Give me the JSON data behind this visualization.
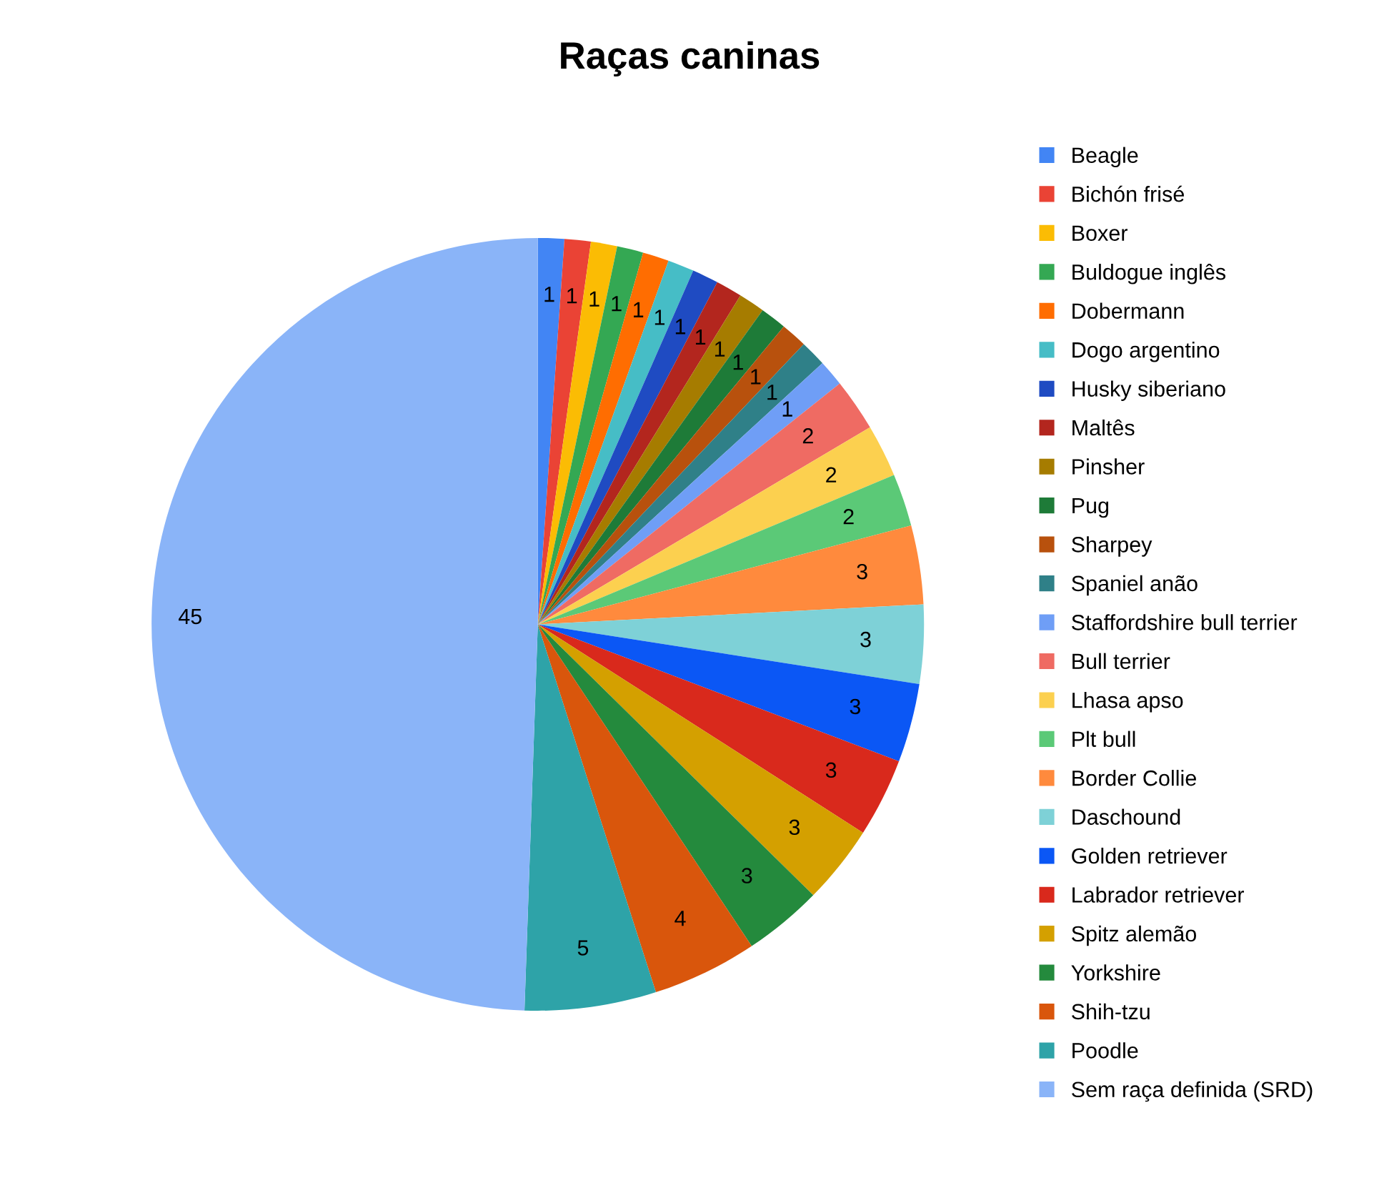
{
  "chart_data": {
    "type": "pie",
    "title": "Raças caninas",
    "categories": [
      "Beagle",
      "Bichón frisé",
      "Boxer",
      "Buldogue inglês",
      "Dobermann",
      "Dogo argentino",
      "Husky siberiano",
      "Maltês",
      "Pinsher",
      "Pug",
      "Sharpey",
      "Spaniel anão",
      "Staffordshire bull terrier",
      "Bull terrier",
      "Lhasa apso",
      "Plt bull",
      "Border Collie",
      "Daschound",
      "Golden retriever",
      "Labrador retriever",
      "Spitz alemão",
      "Yorkshire",
      "Shih-tzu",
      "Poodle",
      "Sem raça definida (SRD)"
    ],
    "values": [
      1,
      1,
      1,
      1,
      1,
      1,
      1,
      1,
      1,
      1,
      1,
      1,
      1,
      2,
      2,
      2,
      3,
      3,
      3,
      3,
      3,
      3,
      4,
      5,
      45
    ],
    "colors": [
      "#4285f4",
      "#ea4335",
      "#fbbc04",
      "#34a853",
      "#ff6d01",
      "#46bdc6",
      "#1f4bc2",
      "#b3261e",
      "#a67c00",
      "#1e7b38",
      "#b8510d",
      "#2f8088",
      "#6f9ef6",
      "#ef6b63",
      "#fcd04f",
      "#5bc977",
      "#ff8a3d",
      "#7ed1d7",
      "#0b57f5",
      "#d9291c",
      "#d4a000",
      "#248a3d",
      "#d9560c",
      "#2ea3a8",
      "#8ab4f8"
    ],
    "data_labels": true,
    "legend": "right"
  }
}
